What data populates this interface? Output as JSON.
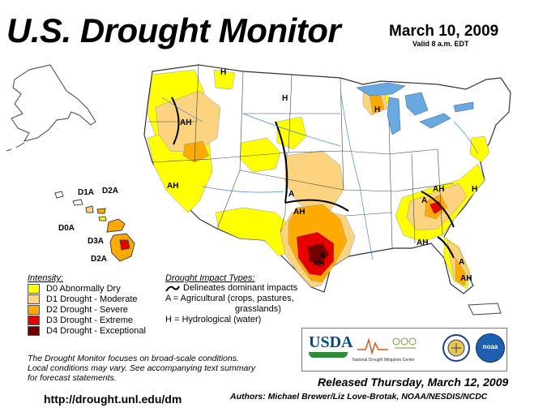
{
  "header": {
    "title": "U.S. Drought Monitor",
    "date": "March 10, 2009",
    "valid": "Valid 8 a.m. EDT"
  },
  "legend": {
    "title": "Intensity:",
    "items": [
      {
        "label": "D0 Abnormally Dry",
        "color": "#ffff00"
      },
      {
        "label": "D1 Drought - Moderate",
        "color": "#fcd37f"
      },
      {
        "label": "D2 Drought - Severe",
        "color": "#ffaa00"
      },
      {
        "label": "D3 Drought - Extreme",
        "color": "#e60000"
      },
      {
        "label": "D4 Drought - Exceptional",
        "color": "#730000"
      }
    ]
  },
  "impacts": {
    "title": "Drought Impact Types:",
    "line_desc": "Delineates dominant impacts",
    "a_line1": "A = Agricultural (crops, pastures,",
    "a_line2": "grasslands)",
    "h_line": "H = Hydrological (water)"
  },
  "note": {
    "line1": "The Drought Monitor focuses on broad-scale conditions.",
    "line2": "Local conditions may vary. See accompanying text summary",
    "line3": "for forecast statements."
  },
  "footer": {
    "url": "http://drought.unl.edu/dm",
    "released": "Released Thursday, March 12, 2009",
    "authors": "Authors: Michael Brewer/Liz Love-Brotak, NOAA/NESDIS/NCDC"
  },
  "logos": {
    "usda": "USDA",
    "ndmc": "National Drought Mitigation Center",
    "noaa": "noaa"
  },
  "map_labels": {
    "hawaii": [
      "D1A",
      "D2A",
      "D0A",
      "D3A",
      "D2A"
    ],
    "conus": [
      "H",
      "H",
      "H",
      "AH",
      "AH",
      "A",
      "AH",
      "H",
      "A",
      "AH",
      "AH",
      "A",
      "AH",
      "AH",
      "A"
    ]
  }
}
